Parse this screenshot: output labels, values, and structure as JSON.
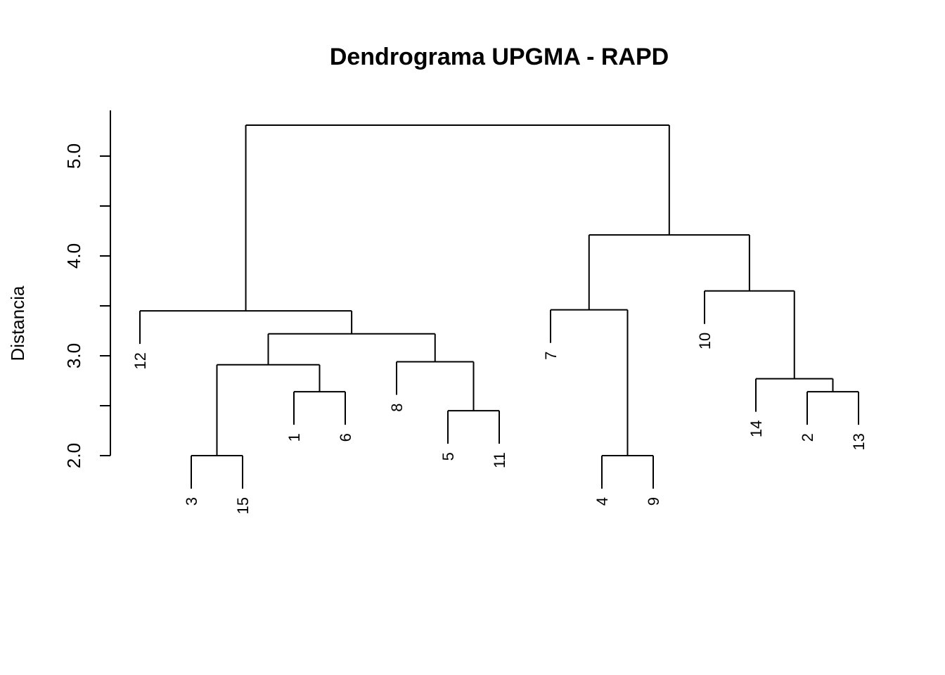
{
  "chart_data": {
    "type": "dendrogram",
    "title": "Dendrograma UPGMA - RAPD",
    "xlabel": "",
    "ylabel": "Distancia",
    "ylim": [
      2.0,
      5.3
    ],
    "yticks": [
      2.0,
      2.5,
      3.0,
      3.5,
      4.0,
      4.5,
      5.0
    ],
    "ytick_labels": [
      "2.0",
      "",
      "3.0",
      "",
      "4.0",
      "",
      "5.0"
    ],
    "leaf_order": [
      "12",
      "3",
      "15",
      "1",
      "6",
      "8",
      "5",
      "11",
      "7",
      "4",
      "9",
      "10",
      "14",
      "2",
      "13"
    ],
    "merges": [
      {
        "left": "3",
        "right": "15",
        "height": 2.0
      },
      {
        "left": "4",
        "right": "9",
        "height": 2.0
      },
      {
        "left": "5",
        "right": "11",
        "height": 2.45
      },
      {
        "left": "1",
        "right": "6",
        "height": 2.64
      },
      {
        "left": "2",
        "right": "13",
        "height": 2.64
      },
      {
        "left": "14",
        "right": "(2,13)",
        "height": 2.77
      },
      {
        "left": "8",
        "right": "(5,11)",
        "height": 2.94
      },
      {
        "left": "(3,15)",
        "right": "(1,6)",
        "height": 2.91
      },
      {
        "left": "(3,15,1,6)",
        "right": "(8,5,11)",
        "height": 3.22
      },
      {
        "left": "12",
        "right": "(3,15,1,6,8,5,11)",
        "height": 3.45
      },
      {
        "left": "7",
        "right": "(4,9)",
        "height": 3.46
      },
      {
        "left": "10",
        "right": "(14,2,13)",
        "height": 3.65
      },
      {
        "left": "(7,4,9)",
        "right": "(10,14,2,13)",
        "height": 4.21
      },
      {
        "left": "(12,...)",
        "right": "(7,...)",
        "height": 5.31
      }
    ]
  }
}
